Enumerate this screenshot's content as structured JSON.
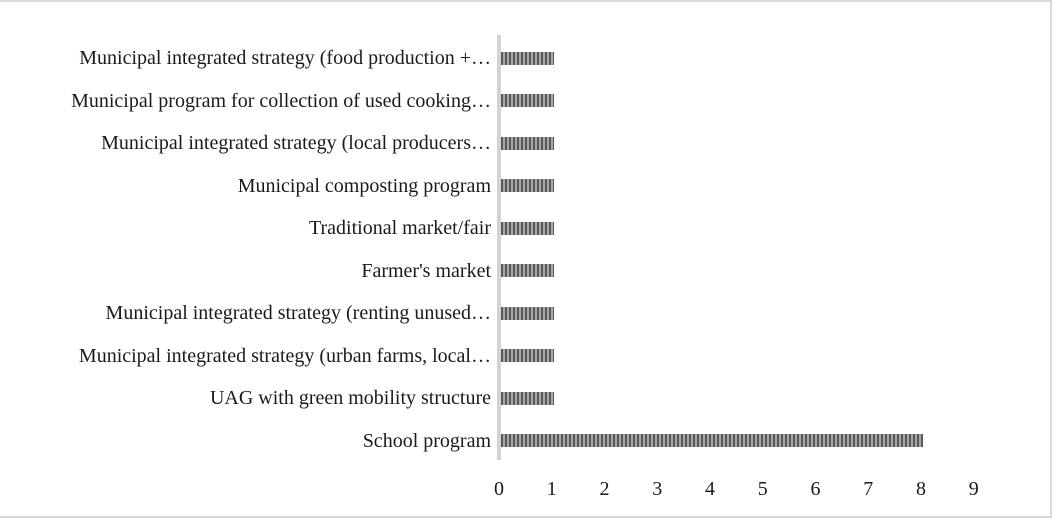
{
  "figure": {
    "background": "#ffffff",
    "border_color": "#d9d9d9"
  },
  "chart_data": {
    "type": "bar",
    "orientation": "horizontal",
    "title": "",
    "xlabel": "",
    "ylabel": "",
    "categories": [
      "Municipal integrated strategy (food production +…",
      "Municipal program for collection of used cooking…",
      "Municipal integrated strategy (local producers…",
      "Municipal composting program",
      "Traditional market/fair",
      "Farmer's market",
      "Municipal integrated strategy (renting unused…",
      "Municipal integrated strategy (urban farms, local…",
      "UAG with green mobility structure",
      "School program"
    ],
    "values": [
      1,
      1,
      1,
      1,
      1,
      1,
      1,
      1,
      1,
      8
    ],
    "xticks": [
      "0",
      "1",
      "2",
      "3",
      "4",
      "5",
      "6",
      "7",
      "8",
      "9"
    ],
    "xlim": [
      0,
      9
    ],
    "grid": false,
    "legend": false,
    "bar_pattern": "vertical-stripes",
    "colors": {
      "bar_stripe_dark": "#595959",
      "bar_stripe_light": "#a6a6a6",
      "axis_line": "#d3d3d3",
      "text": "#1a1a1a"
    }
  }
}
